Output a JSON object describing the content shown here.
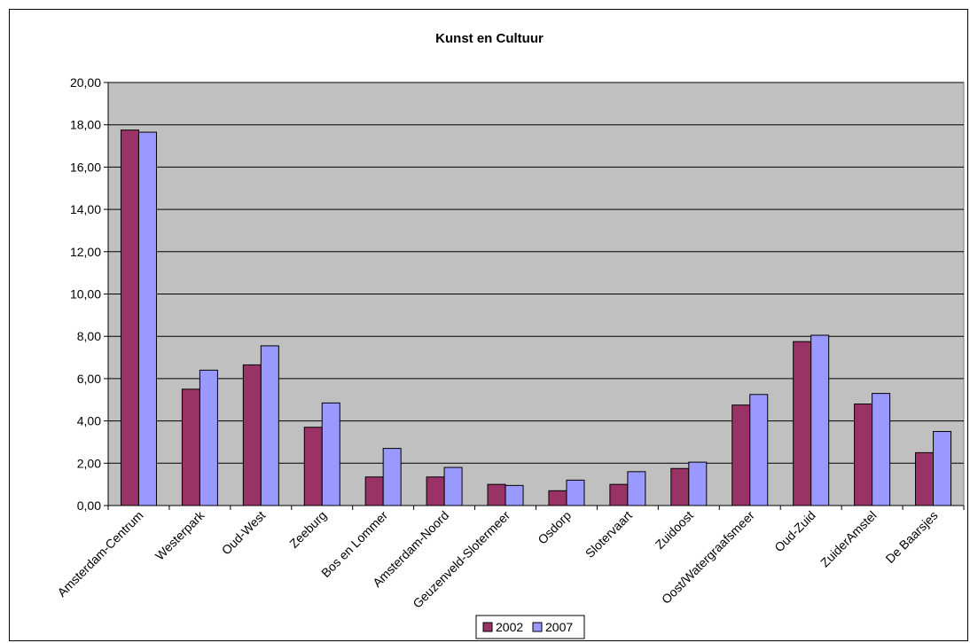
{
  "chart_data": {
    "type": "bar",
    "title": "Kunst en Cultuur",
    "xlabel": "",
    "ylabel": "",
    "ylim": [
      0,
      20
    ],
    "yticks": [
      "0,00",
      "2,00",
      "4,00",
      "6,00",
      "8,00",
      "10,00",
      "12,00",
      "14,00",
      "16,00",
      "18,00",
      "20,00"
    ],
    "grid": true,
    "legend_position": "bottom",
    "categories": [
      "Amsterdam-Centrum",
      "Westerpark",
      "Oud-West",
      "Zeeburg",
      "Bos en Lommer",
      "Amsterdam-Noord",
      "Geuzenveld-Slotermeer",
      "Osdorp",
      "Slotervaart",
      "Zuidoost",
      "Oost/Watergraafsmeer",
      "Oud-Zuid",
      "ZuiderAmstel",
      "De Baarsjes"
    ],
    "series": [
      {
        "name": "2002",
        "color": "#993366",
        "values": [
          17.75,
          5.5,
          6.65,
          3.7,
          1.35,
          1.35,
          1.0,
          0.7,
          1.0,
          1.75,
          4.75,
          7.75,
          4.8,
          2.5
        ]
      },
      {
        "name": "2007",
        "color": "#9999ff",
        "values": [
          17.65,
          6.4,
          7.55,
          4.85,
          2.7,
          1.8,
          0.95,
          1.2,
          1.6,
          2.05,
          5.25,
          8.05,
          5.3,
          3.5
        ]
      }
    ],
    "plot_background": "#c0c0c0"
  }
}
